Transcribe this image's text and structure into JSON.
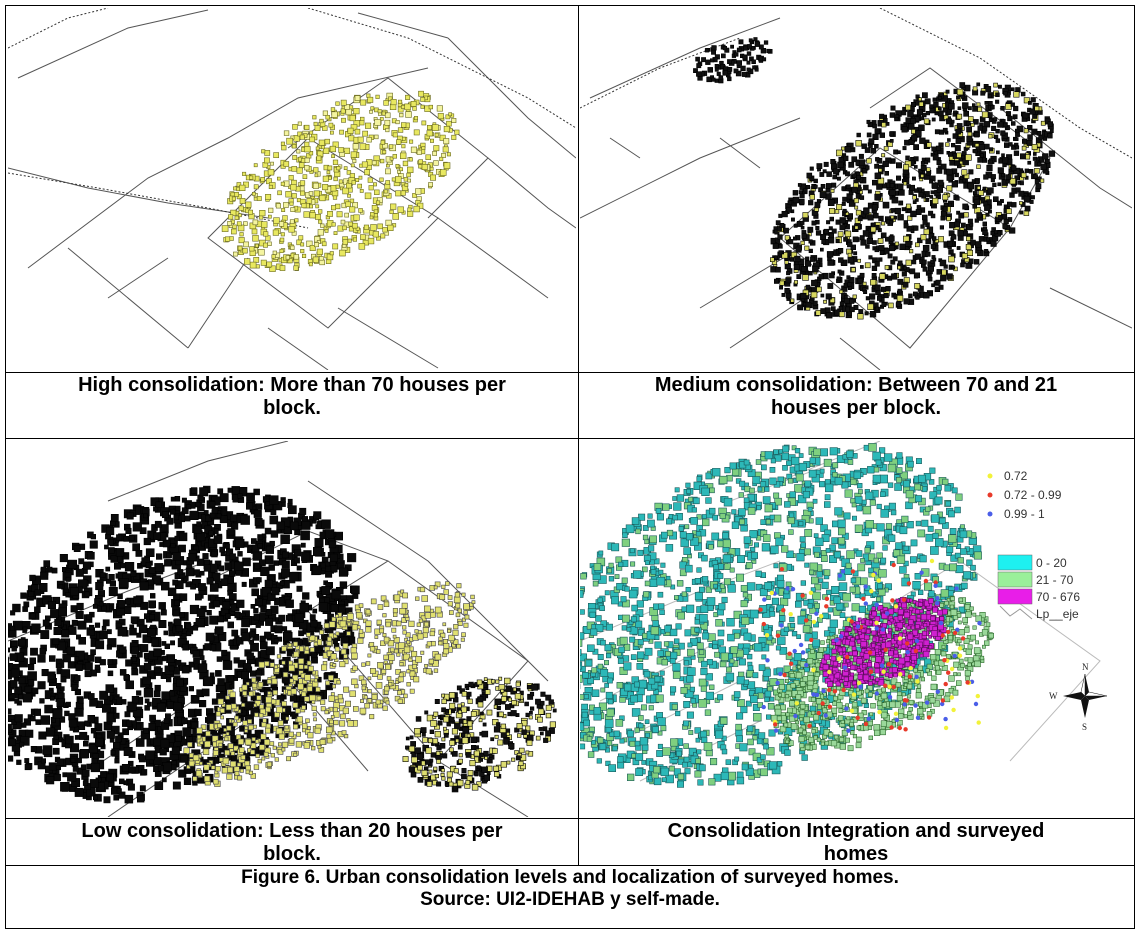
{
  "panels": [
    {
      "caption_line1": "High consolidation: More than 70 houses per",
      "caption_line2": "block."
    },
    {
      "caption_line1": "Medium consolidation: Between 70 and 21",
      "caption_line2": "houses per block."
    },
    {
      "caption_line1": "Low consolidation: Less than 20 houses per",
      "caption_line2": "block."
    },
    {
      "caption_line1": "Consolidation Integration and surveyed",
      "caption_line2": "homes"
    }
  ],
  "legend": {
    "points": [
      {
        "label": "0.72",
        "color": "#f2f23a"
      },
      {
        "label": "0.72 - 0.99",
        "color": "#e83a2a"
      },
      {
        "label": "0.99 - 1",
        "color": "#4a5ee8"
      }
    ],
    "areas": [
      {
        "label": "0 - 20",
        "color": "#1ef0f0"
      },
      {
        "label": "21 - 70",
        "color": "#9af09a"
      },
      {
        "label": "70 - 676",
        "color": "#e81ee8"
      }
    ],
    "line_label": "Lp__eje"
  },
  "compass": {
    "n": "N",
    "s": "S",
    "w": "W",
    "e": "E"
  },
  "figure": {
    "caption_line1": "Figure 6. Urban consolidation levels and localization of surveyed homes.",
    "caption_line2": "Source: UI2-IDEHAB y self-made."
  }
}
